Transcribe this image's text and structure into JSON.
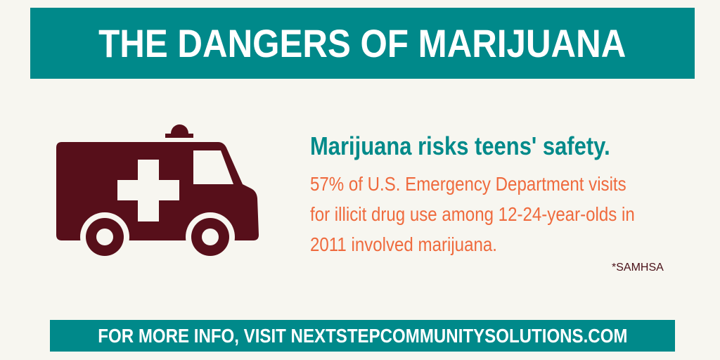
{
  "title": "THE DANGERS OF MARIJUANA",
  "headline": "Marijuana risks teens' safety.",
  "body": "57% of U.S. Emergency Department visits for illicit drug use among 12-24-year-olds in 2011 involved marijuana.",
  "source": "*SAMHSA",
  "footer": "FOR MORE INFO, VISIT NEXTSTEPCOMMUNITYSOLUTIONS.COM",
  "icon": "ambulance-icon",
  "colors": {
    "teal": "#00898a",
    "maroon": "#570f1a",
    "orange": "#ef6a3d",
    "background": "#f7f6f0"
  }
}
